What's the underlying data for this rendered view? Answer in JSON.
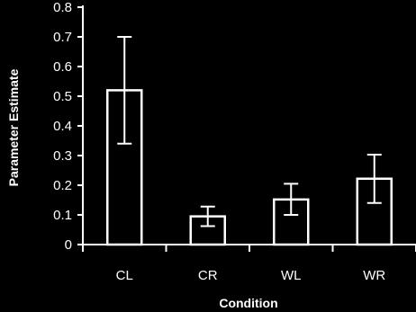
{
  "chart_data": {
    "type": "bar",
    "title": "",
    "xlabel": "Condition",
    "ylabel": "Parameter Estimate",
    "categories": [
      "CL",
      "CR",
      "WL",
      "WR"
    ],
    "values": [
      0.52,
      0.095,
      0.152,
      0.222
    ],
    "error_low": [
      0.34,
      0.062,
      0.1,
      0.14
    ],
    "error_high": [
      0.7,
      0.128,
      0.205,
      0.303
    ],
    "ylim": [
      0,
      0.8
    ],
    "yticks": [
      "0",
      "0.1",
      "0.2",
      "0.3",
      "0.4",
      "0.5",
      "0.6",
      "0.7",
      "0.8"
    ],
    "grid": false,
    "colors": {
      "background": "#000000",
      "bar_fill": "#000000",
      "stroke": "#ffffff",
      "text": "#ffffff"
    }
  }
}
